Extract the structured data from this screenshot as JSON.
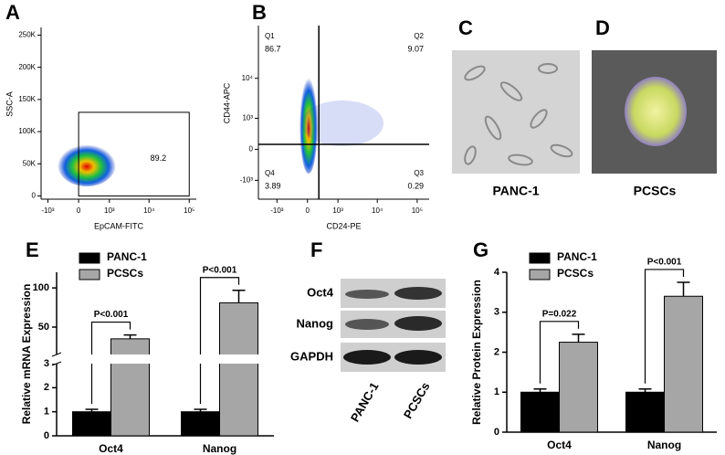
{
  "chart_data": [
    {
      "type": "flow",
      "panel": "A",
      "xlabel": "EpCAM-FITC",
      "ylabel": "SSC-A",
      "xscale": "biexponential",
      "yscale": "linear",
      "xlim": [
        -1500,
        150000
      ],
      "xticks": [
        {
          "value": -1000,
          "label": "-10³"
        },
        0,
        {
          "value": 1000,
          "label": "10³"
        },
        {
          "value": 10000,
          "label": "10⁴"
        },
        {
          "value": 100000,
          "label": "10⁵"
        }
      ],
      "ylim": [
        -5000,
        262000
      ],
      "yticks": [
        0,
        {
          "value": 50000,
          "label": "50K"
        },
        {
          "value": 100000,
          "label": "100K"
        },
        {
          "value": 150000,
          "label": "150K"
        },
        {
          "value": 200000,
          "label": "200K"
        },
        {
          "value": 250000,
          "label": "250K"
        }
      ],
      "gate": {
        "x": [
          0,
          100000
        ],
        "y": [
          0,
          130000
        ],
        "percent": 89.2
      }
    },
    {
      "type": "flow",
      "panel": "B",
      "xlabel": "CD24-PE",
      "ylabel": "CD44-APC",
      "xscale": "biexponential",
      "yscale": "biexponential",
      "xlim": [
        -3000,
        200000
      ],
      "xticks": [
        {
          "value": -1000,
          "label": "-10³"
        },
        0,
        {
          "value": 1000,
          "label": "10³"
        },
        {
          "value": 10000,
          "label": "10⁴"
        },
        {
          "value": 100000,
          "label": "10⁵"
        }
      ],
      "ylim": [
        -3000,
        200000
      ],
      "yticks": [
        {
          "value": -1000,
          "label": "-10³"
        },
        0,
        {
          "value": 1000,
          "label": "10³"
        },
        {
          "value": 10000,
          "label": "10⁴"
        }
      ],
      "quadrant_lines": {
        "x": 250,
        "y": 100
      },
      "quadrants": [
        {
          "name": "Q1",
          "percent": 86.7
        },
        {
          "name": "Q2",
          "percent": 9.07
        },
        {
          "name": "Q3",
          "percent": 0.29
        },
        {
          "name": "Q4",
          "percent": 3.89
        }
      ]
    },
    {
      "type": "bar",
      "panel": "E",
      "ylabel": "Relative mRNA Expression",
      "categories": [
        "Oct4",
        "Nanog"
      ],
      "series": [
        {
          "name": "PANC-1",
          "color": "#000000",
          "values": [
            1,
            1
          ],
          "errors": [
            0.1,
            0.1
          ]
        },
        {
          "name": "PCSCs",
          "color": "#a6a6a6",
          "values": [
            35,
            81
          ],
          "errors": [
            5,
            16
          ]
        }
      ],
      "ylim": [
        0,
        3
      ],
      "yticks": [
        0,
        1,
        2,
        3
      ],
      "y_break": {
        "ylim": [
          15,
          120
        ],
        "yticks": [
          50,
          100
        ]
      },
      "significance": [
        "P<0.001",
        "P<0.001"
      ]
    },
    {
      "type": "bar",
      "panel": "G",
      "ylabel": "Relative Protein Expression",
      "categories": [
        "Oct4",
        "Nanog"
      ],
      "series": [
        {
          "name": "PANC-1",
          "color": "#000000",
          "values": [
            1,
            1
          ],
          "errors": [
            0.08,
            0.08
          ]
        },
        {
          "name": "PCSCs",
          "color": "#a6a6a6",
          "values": [
            2.25,
            3.4
          ],
          "errors": [
            0.2,
            0.35
          ]
        }
      ],
      "ylim": [
        0,
        4
      ],
      "yticks": [
        0,
        1,
        2,
        3,
        4
      ],
      "significance": [
        "P=0.022",
        "P<0.001"
      ]
    }
  ],
  "images": [
    {
      "panel": "C",
      "label": "PANC-1"
    },
    {
      "panel": "D",
      "label": "PCSCs"
    }
  ],
  "blot": {
    "panel": "F",
    "rows": [
      "Oct4",
      "Nanog",
      "GAPDH"
    ],
    "columns": [
      "PANC-1",
      "PCSCs"
    ]
  }
}
